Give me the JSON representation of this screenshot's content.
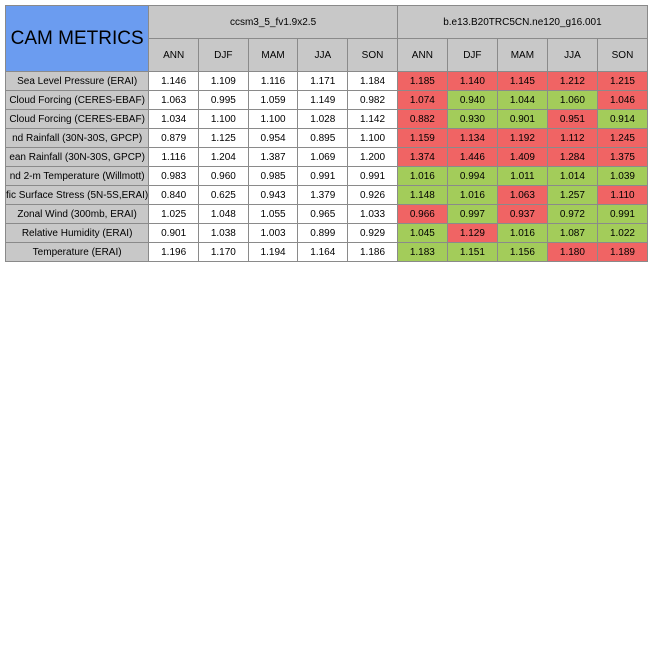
{
  "chart_data": {
    "type": "table",
    "title": "CAM METRICS",
    "models": [
      "ccsm3_5_fv1.9x2.5",
      "b.e13.B20TRC5CN.ne120_g16.001"
    ],
    "seasons": [
      "ANN",
      "DJF",
      "MAM",
      "JJA",
      "SON"
    ],
    "rows": [
      {
        "label": "Sea Level Pressure (ERAI)",
        "base": [
          "1.146",
          "1.109",
          "1.116",
          "1.171",
          "1.184"
        ],
        "test": [
          "1.185",
          "1.140",
          "1.145",
          "1.212",
          "1.215"
        ],
        "status": [
          "bad",
          "bad",
          "bad",
          "bad",
          "bad"
        ]
      },
      {
        "label": "Cloud Forcing (CERES-EBAF)",
        "base": [
          "1.063",
          "0.995",
          "1.059",
          "1.149",
          "0.982"
        ],
        "test": [
          "1.074",
          "0.940",
          "1.044",
          "1.060",
          "1.046"
        ],
        "status": [
          "bad",
          "good",
          "good",
          "good",
          "bad"
        ]
      },
      {
        "label": "Cloud Forcing (CERES-EBAF)",
        "base": [
          "1.034",
          "1.100",
          "1.100",
          "1.028",
          "1.142"
        ],
        "test": [
          "0.882",
          "0.930",
          "0.901",
          "0.951",
          "0.914"
        ],
        "status": [
          "bad",
          "good",
          "good",
          "bad",
          "good"
        ]
      },
      {
        "label": "nd Rainfall (30N-30S, GPCP)",
        "base": [
          "0.879",
          "1.125",
          "0.954",
          "0.895",
          "1.100"
        ],
        "test": [
          "1.159",
          "1.134",
          "1.192",
          "1.112",
          "1.245"
        ],
        "status": [
          "bad",
          "bad",
          "bad",
          "bad",
          "bad"
        ]
      },
      {
        "label": "ean Rainfall (30N-30S, GPCP)",
        "base": [
          "1.116",
          "1.204",
          "1.387",
          "1.069",
          "1.200"
        ],
        "test": [
          "1.374",
          "1.446",
          "1.409",
          "1.284",
          "1.375"
        ],
        "status": [
          "bad",
          "bad",
          "bad",
          "bad",
          "bad"
        ]
      },
      {
        "label": "nd 2-m Temperature (Willmott)",
        "base": [
          "0.983",
          "0.960",
          "0.985",
          "0.991",
          "0.991"
        ],
        "test": [
          "1.016",
          "0.994",
          "1.011",
          "1.014",
          "1.039"
        ],
        "status": [
          "good",
          "good",
          "good",
          "good",
          "good"
        ]
      },
      {
        "label": "fic Surface Stress (5N-5S,ERAI)",
        "base": [
          "0.840",
          "0.625",
          "0.943",
          "1.379",
          "0.926"
        ],
        "test": [
          "1.148",
          "1.016",
          "1.063",
          "1.257",
          "1.110"
        ],
        "status": [
          "good",
          "good",
          "bad",
          "good",
          "bad"
        ]
      },
      {
        "label": "Zonal Wind (300mb, ERAI)",
        "base": [
          "1.025",
          "1.048",
          "1.055",
          "0.965",
          "1.033"
        ],
        "test": [
          "0.966",
          "0.997",
          "0.937",
          "0.972",
          "0.991"
        ],
        "status": [
          "bad",
          "good",
          "bad",
          "good",
          "good"
        ]
      },
      {
        "label": "Relative Humidity (ERAI)",
        "base": [
          "0.901",
          "1.038",
          "1.003",
          "0.899",
          "0.929"
        ],
        "test": [
          "1.045",
          "1.129",
          "1.016",
          "1.087",
          "1.022"
        ],
        "status": [
          "good",
          "bad",
          "good",
          "good",
          "good"
        ]
      },
      {
        "label": "Temperature (ERAI)",
        "base": [
          "1.196",
          "1.170",
          "1.194",
          "1.164",
          "1.186"
        ],
        "test": [
          "1.183",
          "1.151",
          "1.156",
          "1.180",
          "1.189"
        ],
        "status": [
          "good",
          "good",
          "good",
          "bad",
          "bad"
        ]
      }
    ],
    "status_colors": {
      "bad": "#f06464",
      "good": "#a3cc5a",
      "header": "#c8c8c8",
      "title": "#6b9cf0"
    }
  }
}
